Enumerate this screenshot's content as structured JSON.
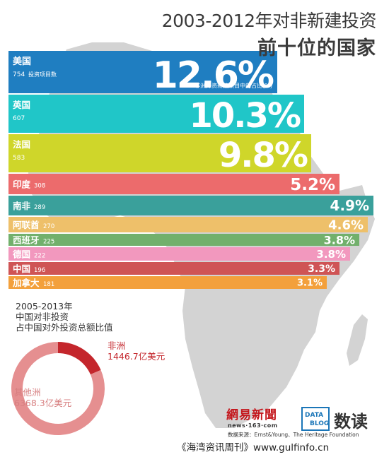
{
  "title": {
    "line1": "2003-2012年对非新建投资",
    "line2": "前十位的国家"
  },
  "chart_data": [
    {
      "type": "bar",
      "title": "2003-2012年对非新建投资前十位的国家",
      "note": "非洲外资新建项目中的占比(%)",
      "count_label": "投资项目数",
      "categories": [
        "美国",
        "英国",
        "法国",
        "印度",
        "南非",
        "阿联酋",
        "西班牙",
        "德国",
        "中国",
        "加拿大"
      ],
      "project_counts": [
        754,
        607,
        583,
        308,
        289,
        270,
        225,
        222,
        196,
        181
      ],
      "values": [
        12.6,
        10.3,
        9.8,
        5.2,
        4.9,
        4.6,
        3.8,
        3.8,
        3.3,
        3.1
      ],
      "value_labels": [
        "12.6%",
        "10.3%",
        "9.8%",
        "5.2%",
        "4.9%",
        "4.6%",
        "3.8%",
        "3.8%",
        "3.3%",
        "3.1%"
      ],
      "bar_colors": [
        "#1f7ec1",
        "#20c6c8",
        "#cfd62a",
        "#ec6b6c",
        "#3aa09b",
        "#eec06a",
        "#72b06c",
        "#f298be",
        "#cf5455",
        "#f3a03c"
      ],
      "label_colors": [
        "#ffffff",
        "#ffffff",
        "#ffffff",
        "#ffffff",
        "#ffffff",
        "#ffffff",
        "#ffffff",
        "#ffffff",
        "#ffffff",
        "#ffffff"
      ]
    },
    {
      "type": "pie",
      "title": "2005-2013年中国对非投资占中国对外投资总额比值",
      "title_lines": [
        "2005-2013年",
        "中国对非投资",
        "占中国对外投资总额比值"
      ],
      "categories": [
        "非洲",
        "其他洲"
      ],
      "values": [
        1446.7,
        6368.3
      ],
      "value_labels": [
        "1446.7亿美元",
        "6368.3亿美元"
      ],
      "colors": [
        "#c4262c",
        "#e58f90"
      ]
    }
  ],
  "branding": {
    "netease": "網易新聞",
    "netease_url": "news·163·com",
    "source": "数据来源：Ernst&Young、The Heritage Foundation",
    "datablog_line1": "DATA",
    "datablog_line2": "BLOG",
    "dushu": "数读",
    "footer": "《海湾资讯周刊》www.gulfinfo.cn"
  }
}
